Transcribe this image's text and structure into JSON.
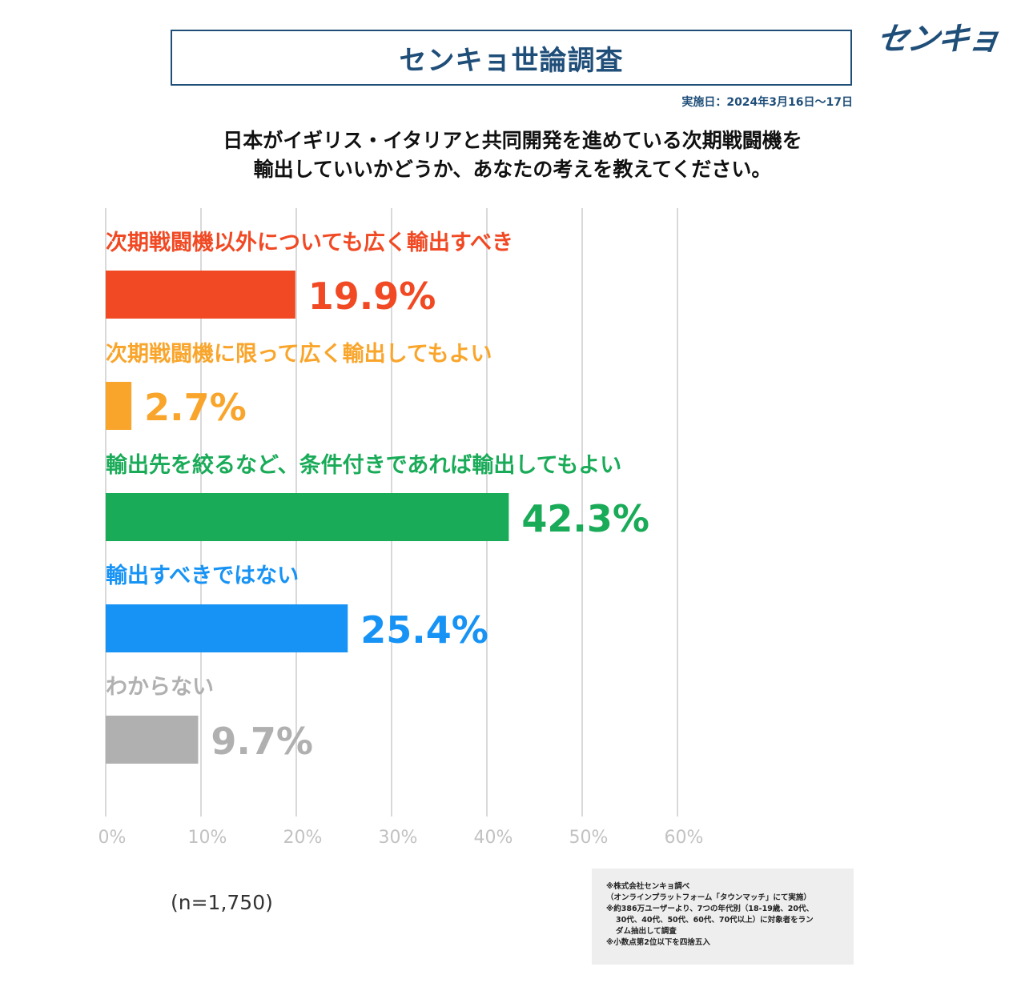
{
  "header": {
    "title": "センキョ世論調査",
    "logo": "センキョ",
    "date": "実施日：2024年3月16日～17日"
  },
  "question": {
    "line1": "日本がイギリス・イタリアと共同開発を進めている次期戦闘機を",
    "line2": "輸出していいかどうか、あなたの考えを教えてください。"
  },
  "chart_data": {
    "type": "bar",
    "orientation": "horizontal",
    "title": "日本がイギリス・イタリアと共同開発を進めている次期戦闘機を輸出していいかどうか、あなたの考えを教えてください。",
    "categories": [
      "次期戦闘機以外についても広く輸出すべき",
      "次期戦闘機に限って広く輸出してもよい",
      "輸出先を絞るなど、条件付きであれば輸出してもよい",
      "輸出すべきではない",
      "わからない"
    ],
    "values": [
      19.9,
      2.7,
      42.3,
      25.4,
      9.7
    ],
    "value_labels": [
      "19.9%",
      "2.7%",
      "42.3%",
      "25.4%",
      "9.7%"
    ],
    "colors": [
      "#f04923",
      "#f9a52b",
      "#19ab58",
      "#1693f5",
      "#b0b0b0"
    ],
    "xlim": [
      0,
      60
    ],
    "xticks": [
      "0%",
      "10%",
      "20%",
      "30%",
      "40%",
      "50%",
      "60%"
    ],
    "grid": true
  },
  "footer": {
    "n": "(n=1,750)",
    "notes": [
      "※株式会社センキョ調べ",
      "（オンラインプラットフォーム「タウンマッチ」にて実施）",
      "※約386万ユーザーより、7つの年代別（18-19歳、20代、",
      "30代、40代、50代、60代、70代以上）に対象者をラン",
      "ダム抽出して調査",
      "※小数点第2位以下を四捨五入"
    ]
  }
}
